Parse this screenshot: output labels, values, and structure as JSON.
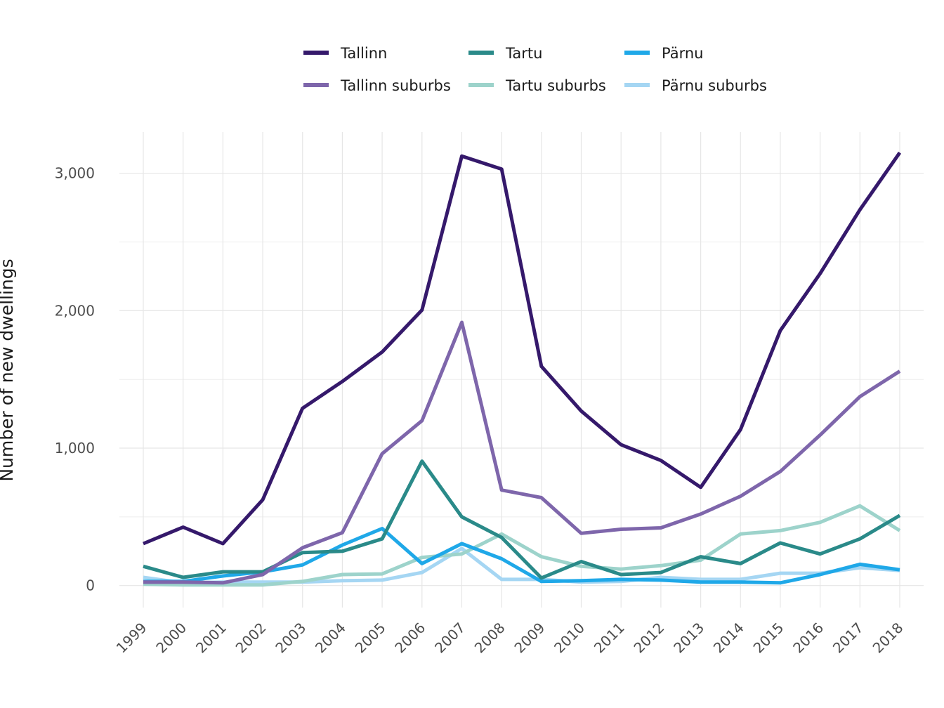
{
  "chart_data": {
    "type": "line",
    "title": "",
    "xlabel": "",
    "ylabel": "Number of new dwellings",
    "x": [
      1999,
      2000,
      2001,
      2002,
      2003,
      2004,
      2005,
      2006,
      2007,
      2008,
      2009,
      2010,
      2011,
      2012,
      2013,
      2014,
      2015,
      2016,
      2017,
      2018
    ],
    "x_tick_labels": [
      "1999",
      "2000",
      "2001",
      "2002",
      "2003",
      "2004",
      "2005",
      "2006",
      "2007",
      "2008",
      "2009",
      "2010",
      "2011",
      "2012",
      "2013",
      "2014",
      "2015",
      "2016",
      "2017",
      "2018"
    ],
    "y_ticks": [
      0,
      1000,
      2000,
      3000
    ],
    "y_tick_labels": [
      "0",
      "1,000",
      "2,000",
      "3,000"
    ],
    "ylim": [
      -160,
      3300
    ],
    "xlim": [
      1998.4,
      2018.6
    ],
    "grid": true,
    "legend_position": "top",
    "series": [
      {
        "name": "Tallinn",
        "color": "#35196b",
        "values": [
          305,
          425,
          305,
          625,
          1290,
          1485,
          1700,
          2005,
          3125,
          3030,
          1595,
          1270,
          1025,
          910,
          715,
          1135,
          1855,
          2270,
          2735,
          3150
        ]
      },
      {
        "name": "Tallinn suburbs",
        "color": "#7e66ab",
        "values": [
          25,
          25,
          20,
          80,
          275,
          385,
          960,
          1200,
          1915,
          695,
          640,
          380,
          410,
          420,
          520,
          650,
          830,
          1095,
          1375,
          1560
        ]
      },
      {
        "name": "Tartu",
        "color": "#2a8a89",
        "values": [
          140,
          60,
          100,
          100,
          240,
          250,
          340,
          905,
          500,
          350,
          55,
          175,
          80,
          95,
          210,
          160,
          310,
          230,
          340,
          510
        ]
      },
      {
        "name": "Tartu suburbs",
        "color": "#9dd3cb",
        "values": [
          10,
          5,
          5,
          5,
          30,
          80,
          85,
          205,
          230,
          375,
          210,
          140,
          120,
          145,
          185,
          375,
          400,
          460,
          580,
          400
        ]
      },
      {
        "name": "Pärnu",
        "color": "#1fa8e8",
        "values": [
          30,
          30,
          70,
          100,
          150,
          295,
          415,
          160,
          305,
          195,
          30,
          35,
          45,
          40,
          25,
          25,
          20,
          80,
          155,
          115
        ]
      },
      {
        "name": "Pärnu suburbs",
        "color": "#a5d6f3",
        "values": [
          60,
          20,
          25,
          25,
          25,
          35,
          40,
          95,
          270,
          45,
          45,
          25,
          30,
          60,
          45,
          45,
          90,
          90,
          130,
          110
        ]
      }
    ]
  }
}
